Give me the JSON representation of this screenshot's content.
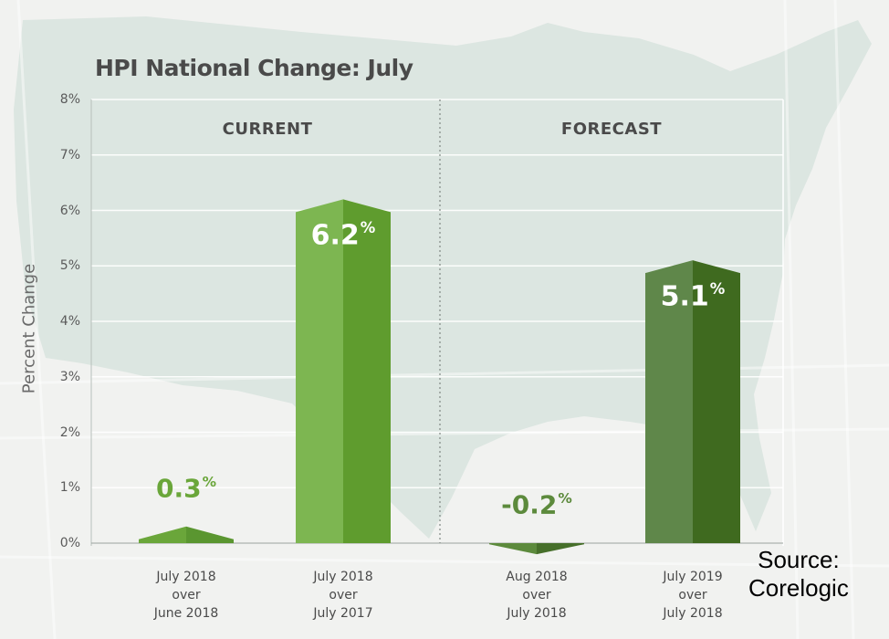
{
  "chart_data": {
    "type": "bar",
    "title": "HPI National Change: July",
    "ylabel": "Percent Change",
    "ylim": [
      0,
      8
    ],
    "y_ticks": [
      "0%",
      "1%",
      "2%",
      "3%",
      "4%",
      "5%",
      "6%",
      "7%",
      "8%"
    ],
    "grid": true,
    "panels": [
      {
        "label": "CURRENT",
        "bars": [
          {
            "category": [
              "July 2018",
              "over",
              "June 2018"
            ],
            "value": 0.3,
            "label": "0.3",
            "unit": "%",
            "color": "#6aa63a",
            "shade": "#5a9630"
          },
          {
            "category": [
              "July 2018",
              "over",
              "July 2017"
            ],
            "value": 6.2,
            "label": "6.2",
            "unit": "%",
            "color": "#7db651",
            "shade": "#5f9c2e"
          }
        ]
      },
      {
        "label": "FORECAST",
        "bars": [
          {
            "category": [
              "Aug 2018",
              "over",
              "July 2018"
            ],
            "value": -0.2,
            "label": "-0.2",
            "unit": "%",
            "color": "#5c8a3c",
            "shade": "#466f2a"
          },
          {
            "category": [
              "July 2019",
              "over",
              "July 2018"
            ],
            "value": 5.1,
            "label": "5.1",
            "unit": "%",
            "color": "#5f874a",
            "shade": "#3f6a1f"
          }
        ]
      }
    ]
  },
  "source": [
    "Source:",
    "Corelogic"
  ]
}
